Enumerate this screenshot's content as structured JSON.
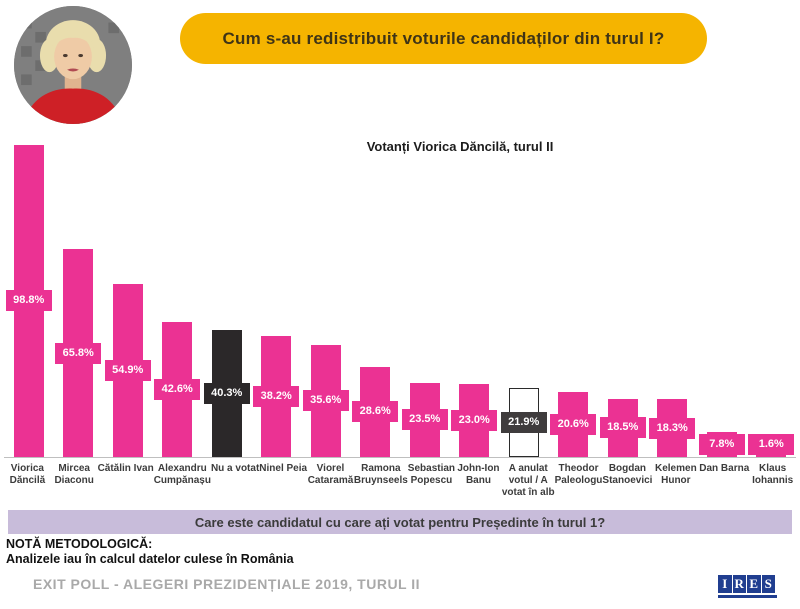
{
  "header": {
    "title": "Cum s-au redistribuit voturile candidaților din turul I?"
  },
  "subtitle": "Votanți Viorica Dăncilă, turul II",
  "chart_data": {
    "type": "bar",
    "title": "Votanți Viorica Dăncilă, turul II",
    "categories": [
      "Viorica\nDăncilă",
      "Mircea\nDiaconu",
      "Cătălin Ivan",
      "Alexandru\nCumpănașu",
      "Nu a votat",
      "Ninel Peia",
      "Viorel\nCataramă",
      "Ramona\nBruynseels",
      "Sebastian\nPopescu",
      "John-Ion\nBanu",
      "A anulat\nvotul / A\nvotat în alb",
      "Theodor\nPaleologu",
      "Bogdan\nStanoevici",
      "Kelemen\nHunor",
      "Dan Barna",
      "Klaus\nIohannis"
    ],
    "values": [
      98.8,
      65.8,
      54.9,
      42.6,
      40.3,
      38.2,
      35.6,
      28.6,
      23.5,
      23.0,
      21.9,
      20.6,
      18.5,
      18.3,
      7.8,
      1.6
    ],
    "value_labels": [
      "98.8%",
      "65.8%",
      "54.9%",
      "42.6%",
      "40.3%",
      "38.2%",
      "35.6%",
      "28.6%",
      "23.5%",
      "23.0%",
      "21.9%",
      "20.6%",
      "18.5%",
      "18.3%",
      "7.8%",
      "1.6%"
    ],
    "bar_styles": [
      "pink",
      "pink",
      "pink",
      "pink",
      "dark",
      "pink",
      "pink",
      "pink",
      "pink",
      "pink",
      "outline",
      "pink",
      "pink",
      "pink",
      "pink",
      "pink"
    ],
    "xlabel": "",
    "ylabel": "",
    "ylim": [
      0,
      100
    ],
    "grid": false,
    "legend": "none",
    "value_suffix": "%"
  },
  "question_banner": "Care este candidatul cu care ați votat pentru Președinte în turul 1?",
  "nota": {
    "heading": "NOTĂ METODOLOGICĂ:",
    "body": "Analizele iau în calcul datelor culese în România"
  },
  "footer": {
    "text": "EXIT POLL - ALEGERI PREZIDENȚIALE 2019, TURUL II",
    "logo_letters": [
      "I",
      "R",
      "E",
      "S"
    ]
  },
  "colors": {
    "bar_pink": "#EB3293",
    "bar_dark": "#2B2829",
    "badge_outline_dark": "#3F3C3D",
    "accent_yellow": "#F5B400",
    "banner_lavender": "#C8BCDA",
    "logo_blue": "#203E90"
  }
}
